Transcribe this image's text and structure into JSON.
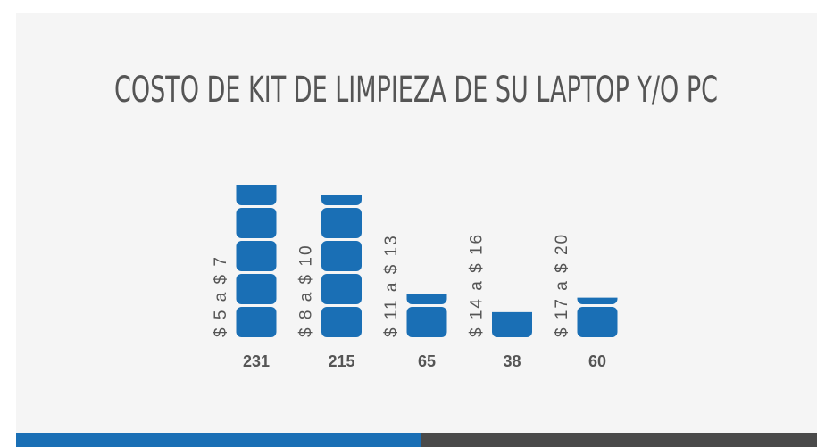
{
  "chart_data": {
    "type": "bar",
    "title": "COSTO DE KIT DE LIMPIEZA DE SU LAPTOP Y/O PC",
    "categories": [
      "$ 5 a $ 7",
      "$ 8 a $ 10",
      "$ 11 a $ 13",
      "$ 14 a $ 16",
      "$ 17 a $ 20"
    ],
    "values": [
      231,
      215,
      65,
      38,
      60
    ],
    "color": "#1a6fb5"
  }
}
